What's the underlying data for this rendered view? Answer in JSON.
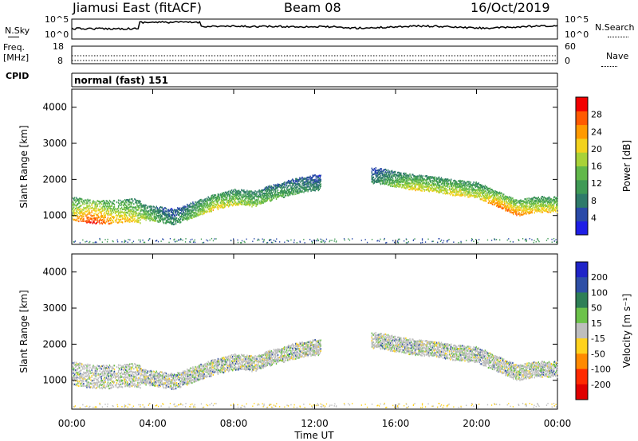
{
  "header": {
    "station": "Jiamusi East (fitACF)",
    "beam": "Beam 08",
    "date": "16/Oct/2019"
  },
  "sky_panel": {
    "left_label": "N.Sky",
    "right_label": "N.Search",
    "left_ticks": [
      "10^5",
      "10^0"
    ],
    "right_ticks": [
      "10^5",
      "10^0"
    ]
  },
  "freq_panel": {
    "left_label_top": "Freq.",
    "left_label_unit": "[MHz]",
    "right_label": "Nave",
    "left_ticks": [
      "18",
      "8"
    ],
    "right_ticks": [
      "60",
      "0"
    ]
  },
  "cpid": {
    "label": "CPID",
    "value": "normal (fast) 151"
  },
  "time_axis": {
    "title": "Time UT",
    "ticks": [
      "00:00",
      "04:00",
      "08:00",
      "12:00",
      "16:00",
      "20:00",
      "00:00"
    ]
  },
  "chart_data": [
    {
      "type": "heatmap",
      "title": "",
      "xlabel": "Time UT",
      "ylabel": "Slant Range [km]",
      "y_ticks": [
        "1000",
        "2000",
        "3000",
        "4000"
      ],
      "colorbar_label": "Power [dB]",
      "colorbar_ticks": [
        "4",
        "8",
        "12",
        "16",
        "20",
        "24",
        "28"
      ],
      "colorbar_range": [
        0,
        32
      ],
      "scatter_bands": [
        {
          "t": 0.0,
          "r": 1250,
          "v": 18
        },
        {
          "t": 1.0,
          "r": 1150,
          "v": 26
        },
        {
          "t": 2.0,
          "r": 1150,
          "v": 20
        },
        {
          "t": 3.0,
          "r": 1200,
          "v": 18
        },
        {
          "t": 5.0,
          "r": 1000,
          "v": 8
        },
        {
          "t": 7.0,
          "r": 1400,
          "v": 18
        },
        {
          "t": 8.0,
          "r": 1550,
          "v": 16
        },
        {
          "t": 9.0,
          "r": 1500,
          "v": 14
        },
        {
          "t": 10.0,
          "r": 1700,
          "v": 12
        },
        {
          "t": 11.0,
          "r": 1850,
          "v": 10
        },
        {
          "t": 12.0,
          "r": 1950,
          "v": 8
        },
        {
          "t": 15.0,
          "r": 2150,
          "v": 8
        },
        {
          "t": 16.0,
          "r": 2050,
          "v": 14
        },
        {
          "t": 17.0,
          "r": 1950,
          "v": 18
        },
        {
          "t": 18.0,
          "r": 1900,
          "v": 16
        },
        {
          "t": 19.0,
          "r": 1800,
          "v": 18
        },
        {
          "t": 20.0,
          "r": 1750,
          "v": 16
        },
        {
          "t": 21.0,
          "r": 1500,
          "v": 22
        },
        {
          "t": 22.0,
          "r": 1250,
          "v": 22
        },
        {
          "t": 23.0,
          "r": 1350,
          "v": 18
        }
      ]
    },
    {
      "type": "heatmap",
      "title": "",
      "xlabel": "Time UT",
      "ylabel": "Slant Range [km]",
      "y_ticks": [
        "1000",
        "2000",
        "3000",
        "4000"
      ],
      "colorbar_label": "Velocity [m s⁻¹]",
      "colorbar_ticks": [
        "200",
        "100",
        "50",
        "15",
        "-15",
        "-50",
        "-100",
        "-200"
      ],
      "colorbar_colors": [
        "#1f24c8",
        "#2e4fa6",
        "#2e7f56",
        "#6cc24a",
        "#bebebe",
        "#ffd21e",
        "#ff8a00",
        "#ff2a00",
        "#e00000"
      ]
    }
  ]
}
